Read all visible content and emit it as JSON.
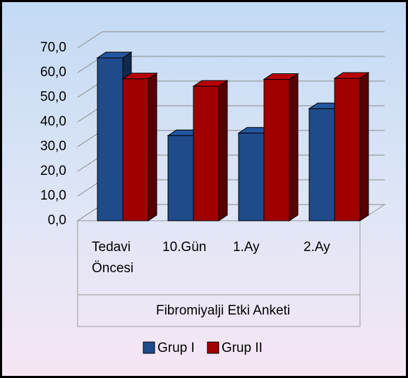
{
  "chart_data": {
    "type": "bar3d",
    "categories": [
      "Tedavi Öncesi",
      "10.Gün",
      "1.Ay",
      "2.Ay"
    ],
    "x_label": "Fibromiyalji Etki Anketi",
    "series": [
      {
        "name": "Grup I",
        "color": "#1f4b8a",
        "values": [
          66,
          34.5,
          35.5,
          45.4
        ]
      },
      {
        "name": "Grup II",
        "color": "#a00000",
        "values": [
          57.5,
          54.5,
          57.3,
          57.7
        ]
      }
    ],
    "ylim": [
      0,
      70
    ],
    "yticks": [
      {
        "value": 0,
        "label": "0,0"
      },
      {
        "value": 10,
        "label": "10,0"
      },
      {
        "value": 20,
        "label": "20,0"
      },
      {
        "value": 30,
        "label": "30,0"
      },
      {
        "value": 40,
        "label": "40,0"
      },
      {
        "value": 50,
        "label": "50,0"
      },
      {
        "value": 60,
        "label": "60,0"
      },
      {
        "value": 70,
        "label": "70,0"
      }
    ],
    "grid": true,
    "legend": "bottom"
  }
}
